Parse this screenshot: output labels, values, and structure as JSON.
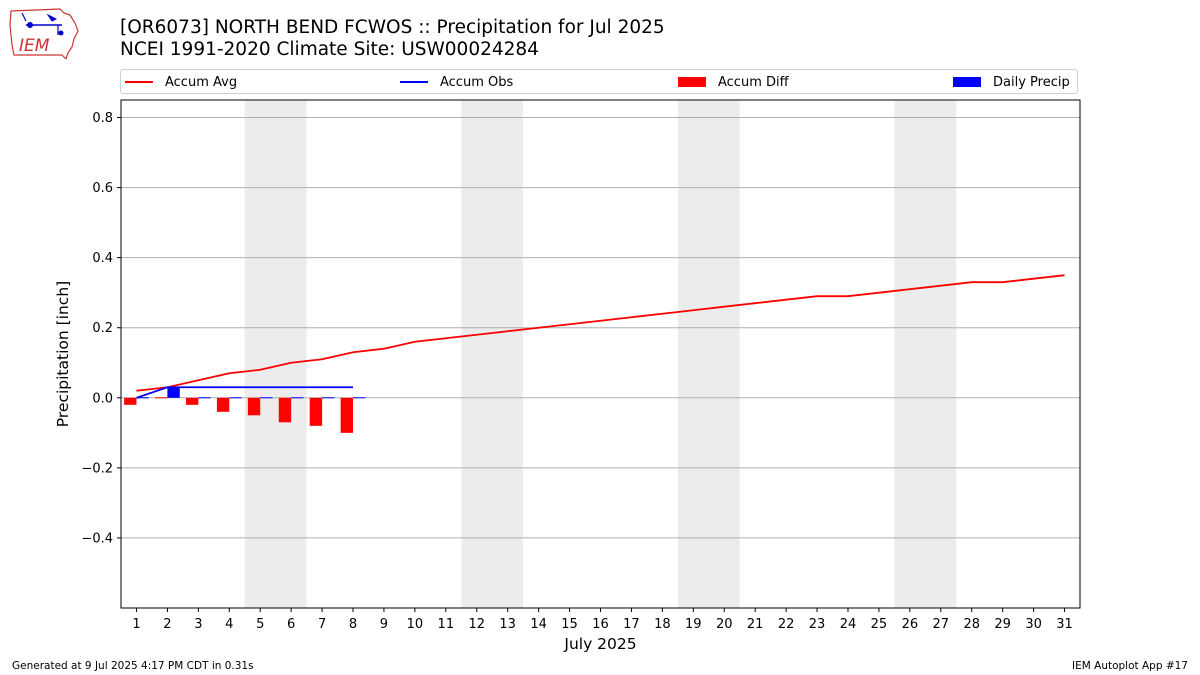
{
  "header": {
    "title_line1": "[OR6073] NORTH BEND FCWOS :: Precipitation for Jul 2025",
    "title_line2": "NCEI 1991-2020 Climate Site: USW00024284"
  },
  "logo": {
    "text": "IEM",
    "icon": "iowa-state-weather-logo-icon"
  },
  "legend": [
    {
      "label": "Accum Avg",
      "kind": "line",
      "color": "#ff0000"
    },
    {
      "label": "Accum Obs",
      "kind": "line",
      "color": "#0000ff"
    },
    {
      "label": "Accum Diff",
      "kind": "box",
      "color": "#ff0000"
    },
    {
      "label": "Daily Precip",
      "kind": "box",
      "color": "#0000ff"
    }
  ],
  "footer": {
    "left": "Generated at 9 Jul 2025 4:17 PM CDT in 0.31s",
    "right": "IEM Autoplot App #17"
  },
  "chart_data": {
    "type": "bar",
    "xlabel": "July 2025",
    "ylabel": "Precipitation [inch]",
    "xlim": [
      0.5,
      31.5
    ],
    "ylim": [
      -0.6,
      0.85
    ],
    "yticks": [
      -0.4,
      -0.2,
      0.0,
      0.2,
      0.4,
      0.6,
      0.8
    ],
    "ytick_labels": [
      "−0.4",
      "−0.2",
      "0.0",
      "0.2",
      "0.4",
      "0.6",
      "0.8"
    ],
    "x": [
      1,
      2,
      3,
      4,
      5,
      6,
      7,
      8,
      9,
      10,
      11,
      12,
      13,
      14,
      15,
      16,
      17,
      18,
      19,
      20,
      21,
      22,
      23,
      24,
      25,
      26,
      27,
      28,
      29,
      30,
      31
    ],
    "weekend_shading": [
      [
        5,
        6
      ],
      [
        12,
        13
      ],
      [
        19,
        20
      ],
      [
        26,
        27
      ]
    ],
    "grid": "horizontal",
    "colors": {
      "avg": "#ff0000",
      "obs": "#0000ff",
      "diff": "#ff0000",
      "daily": "#0000ff",
      "shade": "#ececec",
      "grid": "#b0b0b0"
    },
    "series": [
      {
        "name": "Accum Avg",
        "kind": "line",
        "x": [
          1,
          2,
          3,
          4,
          5,
          6,
          7,
          8,
          9,
          10,
          11,
          12,
          13,
          14,
          15,
          16,
          17,
          18,
          19,
          20,
          21,
          22,
          23,
          24,
          25,
          26,
          27,
          28,
          29,
          30,
          31
        ],
        "values": [
          0.02,
          0.03,
          0.05,
          0.07,
          0.08,
          0.1,
          0.11,
          0.13,
          0.14,
          0.16,
          0.17,
          0.18,
          0.19,
          0.2,
          0.21,
          0.22,
          0.23,
          0.24,
          0.25,
          0.26,
          0.27,
          0.28,
          0.29,
          0.29,
          0.3,
          0.31,
          0.32,
          0.33,
          0.33,
          0.34,
          0.35
        ]
      },
      {
        "name": "Accum Obs",
        "kind": "line",
        "x": [
          1,
          2,
          3,
          4,
          5,
          6,
          7,
          8
        ],
        "values": [
          0.0,
          0.03,
          0.03,
          0.03,
          0.03,
          0.03,
          0.03,
          0.03
        ]
      },
      {
        "name": "Accum Diff",
        "kind": "bar",
        "x": [
          1,
          2,
          3,
          4,
          5,
          6,
          7,
          8
        ],
        "values": [
          -0.02,
          0.0,
          -0.02,
          -0.04,
          -0.05,
          -0.07,
          -0.08,
          -0.1
        ]
      },
      {
        "name": "Daily Precip",
        "kind": "bar",
        "x": [
          1,
          2,
          3,
          4,
          5,
          6,
          7,
          8
        ],
        "values": [
          0.0,
          0.03,
          0.0,
          0.0,
          0.0,
          0.0,
          0.0,
          0.0
        ]
      }
    ]
  }
}
